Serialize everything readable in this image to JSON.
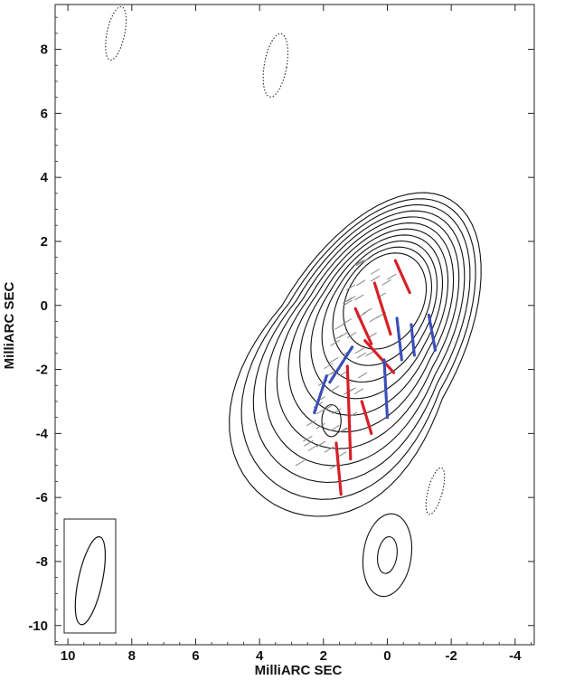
{
  "chart_data": {
    "type": "contour-map",
    "title": "",
    "xlabel": "MilliARC SEC",
    "ylabel": "MilliARC SEC",
    "xlim": [
      10.4,
      -4.6
    ],
    "ylim": [
      -10.6,
      9.4
    ],
    "x_ticks": [
      10,
      8,
      6,
      4,
      2,
      0,
      -2,
      -4
    ],
    "y_ticks": [
      8,
      6,
      4,
      2,
      0,
      -2,
      -4,
      -6,
      -8,
      -10
    ],
    "contour_levels": 11,
    "jet_core": {
      "x": 0.0,
      "y": 0.3
    },
    "secondary_peak": {
      "x": 1.75,
      "y": -3.6
    },
    "beam": {
      "x": 9.3,
      "y": -8.6,
      "major": 2.8,
      "minor": 0.75,
      "pa_deg": 12
    },
    "negative_contours": [
      {
        "x": 8.5,
        "y": 8.5,
        "w": 0.55,
        "h": 1.7,
        "angle": 12
      },
      {
        "x": 3.5,
        "y": 7.5,
        "w": 0.7,
        "h": 2.0,
        "angle": 10
      },
      {
        "x": -1.5,
        "y": -5.8,
        "w": 0.45,
        "h": 1.5,
        "angle": 15
      }
    ],
    "positive_isolated": [
      {
        "x": 0.0,
        "y": -7.8,
        "w": 1.5,
        "h": 2.6,
        "angle": 8
      }
    ],
    "red_vectors": [
      [
        [
          -0.25,
          1.4
        ],
        [
          -0.7,
          0.4
        ]
      ],
      [
        [
          0.4,
          0.7
        ],
        [
          -0.1,
          -0.9
        ]
      ],
      [
        [
          1.0,
          -0.1
        ],
        [
          0.5,
          -1.2
        ]
      ],
      [
        [
          0.7,
          -1.1
        ],
        [
          -0.2,
          -2.1
        ]
      ],
      [
        [
          1.25,
          -1.9
        ],
        [
          1.15,
          -4.8
        ]
      ],
      [
        [
          0.8,
          -3.0
        ],
        [
          0.5,
          -4.0
        ]
      ],
      [
        [
          1.6,
          -4.3
        ],
        [
          1.45,
          -5.9
        ]
      ]
    ],
    "blue_vectors": [
      [
        [
          -1.3,
          -0.3
        ],
        [
          -1.5,
          -1.4
        ]
      ],
      [
        [
          -0.75,
          -0.6
        ],
        [
          -0.85,
          -1.6
        ]
      ],
      [
        [
          -0.3,
          -0.4
        ],
        [
          -0.45,
          -1.7
        ]
      ],
      [
        [
          0.1,
          -1.7
        ],
        [
          0.0,
          -3.5
        ]
      ],
      [
        [
          1.1,
          -1.3
        ],
        [
          1.8,
          -2.4
        ]
      ],
      [
        [
          1.9,
          -2.2
        ],
        [
          2.3,
          -3.4
        ]
      ]
    ],
    "colors": {
      "contour": "#111111",
      "red": "#d62028",
      "blue": "#3a4fb8",
      "grey_ticks": "#888888"
    }
  }
}
